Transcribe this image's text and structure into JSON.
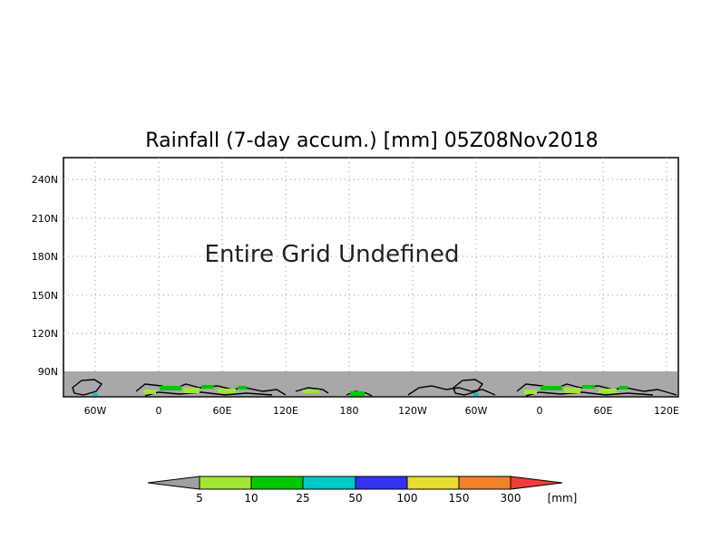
{
  "title": "Rainfall (7-day accum.) [mm] 05Z08Nov2018",
  "message": "Entire Grid Undefined",
  "y_ticks": [
    "240N",
    "210N",
    "180N",
    "150N",
    "120N",
    "90N"
  ],
  "x_ticks": [
    "60W",
    "0",
    "60E",
    "120E",
    "180",
    "120W",
    "60W",
    "0",
    "60E",
    "120E"
  ],
  "colorbar": {
    "labels": [
      "5",
      "10",
      "25",
      "50",
      "100",
      "150",
      "300"
    ],
    "unit": "[mm]",
    "colors": [
      "#a0a0a0",
      "#a0e632",
      "#00c800",
      "#00c8c8",
      "#3232f0",
      "#e6dc32",
      "#f08228",
      "#f03c3c"
    ]
  },
  "colors": {
    "undefined_fill": "#a8a8a8",
    "coastline": "#000000",
    "grid": "#999999"
  }
}
